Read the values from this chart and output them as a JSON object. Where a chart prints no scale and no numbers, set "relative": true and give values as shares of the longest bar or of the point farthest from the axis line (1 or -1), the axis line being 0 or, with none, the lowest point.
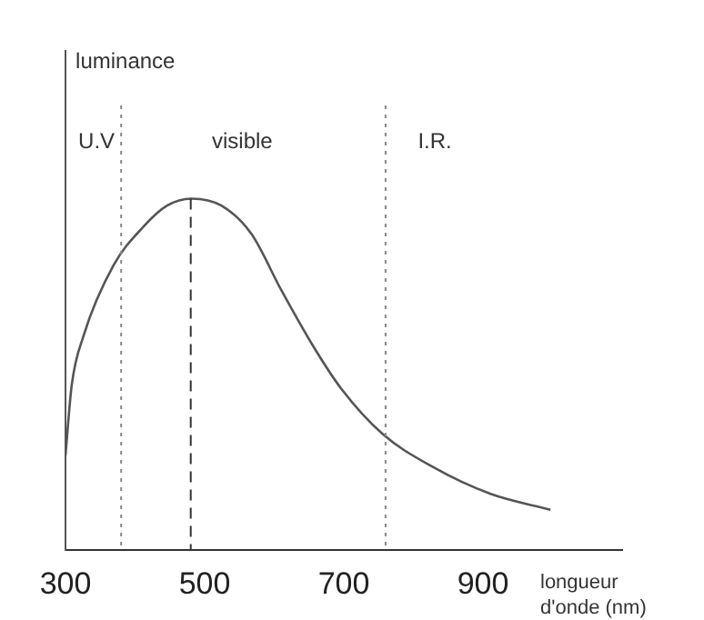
{
  "chart_data": {
    "type": "line",
    "xlabel": "longueur d'onde (nm)",
    "relative": true,
    "annotations": [
      "luminance",
      "U.V",
      "visible",
      "I.R."
    ],
    "xlim": [
      300,
      1100
    ],
    "xticks": [
      300,
      500,
      700,
      900
    ],
    "grid": false,
    "legend": false,
    "marker": "none",
    "line_style": "solid",
    "x": [
      300,
      309,
      326,
      369,
      412,
      446,
      481,
      524,
      567,
      610,
      653,
      696,
      756,
      825,
      911,
      997
    ],
    "series": [
      {
        "color": "#555555",
        "values": [
          0.27,
          0.47,
          0.61,
          0.81,
          0.92,
          0.98,
          1.0,
          0.98,
          0.9,
          0.74,
          0.59,
          0.46,
          0.33,
          0.24,
          0.16,
          0.115
        ]
      }
    ],
    "ref_lines": [
      {
        "axis": "x",
        "value": 380,
        "line_style": "dotted",
        "color": "#888888"
      },
      {
        "axis": "x",
        "value": 480,
        "line_style": "dashed",
        "color": "#333333"
      },
      {
        "axis": "x",
        "value": 760,
        "line_style": "dotted",
        "color": "#888888"
      }
    ]
  }
}
